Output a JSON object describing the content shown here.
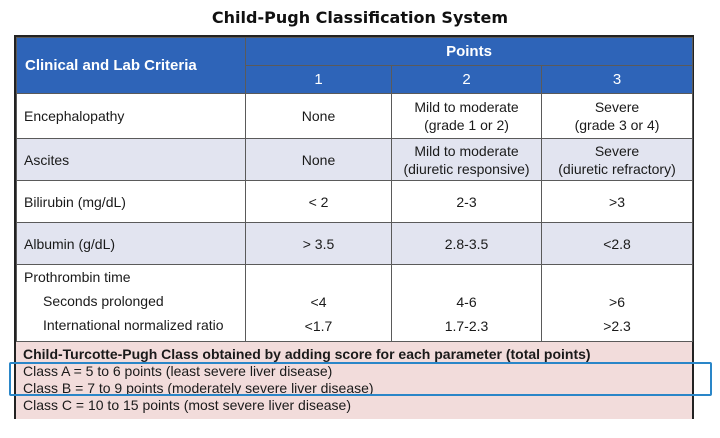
{
  "title": "Child-Pugh Classification System",
  "table": {
    "criteria_header": "Clinical and Lab Criteria",
    "points_header": "Points",
    "point_columns": [
      "1",
      "2",
      "3"
    ],
    "rows": [
      {
        "label": "Encephalopathy",
        "p1": "None",
        "p2a": "Mild to moderate",
        "p2b": "(grade 1 or 2)",
        "p3a": "Severe",
        "p3b": "(grade 3 or 4)"
      },
      {
        "label": "Ascites",
        "p1": "None",
        "p2a": "Mild to moderate",
        "p2b": "(diuretic responsive)",
        "p3a": "Severe",
        "p3b": "(diuretic refractory)"
      },
      {
        "label": "Bilirubin (mg/dL)",
        "p1": "< 2",
        "p2": "2-3",
        "p3": ">3"
      },
      {
        "label": "Albumin (g/dL)",
        "p1": "> 3.5",
        "p2": "2.8-3.5",
        "p3": "<2.8"
      }
    ],
    "prothrombin": {
      "label": "Prothrombin time",
      "sub1": {
        "label": "Seconds prolonged",
        "p1": "<4",
        "p2": "4-6",
        "p3": ">6"
      },
      "sub2": {
        "label": "International normalized ratio",
        "p1": "<1.7",
        "p2": "1.7-2.3",
        "p3": ">2.3"
      }
    }
  },
  "summary": {
    "heading": "Child-Turcotte-Pugh Class obtained by adding score for each parameter (total points)",
    "class_a": "Class A = 5 to 6 points (least severe liver disease)",
    "class_b": "Class B = 7 to 9 points (moderately severe liver disease)",
    "class_c": "Class C = 10 to 15 points (most severe liver disease)"
  },
  "colors": {
    "header_blue": "#2e64b8",
    "row_alt": "#e2e4f0",
    "summary_pink": "#f2dcdb",
    "highlight_border": "#2a86c8"
  }
}
